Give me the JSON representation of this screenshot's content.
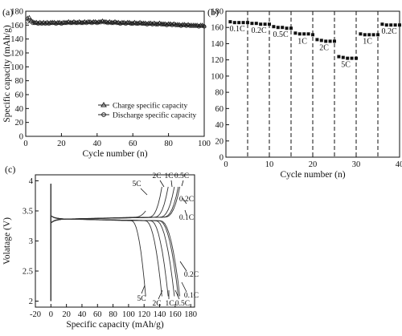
{
  "chart_data": [
    {
      "panel_label": "(a)",
      "type": "scatter",
      "xlabel": "Cycle number (n)",
      "ylabel": "Specific capacity (mAh/g)",
      "xlim": [
        0,
        100
      ],
      "ylim": [
        0,
        180
      ],
      "xticks": [
        0,
        20,
        40,
        60,
        80,
        100
      ],
      "yticks": [
        0,
        20,
        40,
        60,
        80,
        100,
        120,
        140,
        160,
        180
      ],
      "legend_position": "bottom-right",
      "grid": false,
      "series": [
        {
          "name": "Charge specific capacity",
          "marker": "triangle",
          "x": [
            1,
            2,
            3,
            4,
            5,
            6,
            7,
            8,
            9,
            10,
            11,
            12,
            13,
            14,
            15,
            16,
            17,
            18,
            19,
            20,
            21,
            22,
            23,
            24,
            25,
            26,
            27,
            28,
            29,
            30,
            31,
            32,
            33,
            34,
            35,
            36,
            37,
            38,
            39,
            40,
            41,
            42,
            43,
            44,
            45,
            46,
            47,
            48,
            49,
            50,
            51,
            52,
            53,
            54,
            55,
            56,
            57,
            58,
            59,
            60,
            61,
            62,
            63,
            64,
            65,
            66,
            67,
            68,
            69,
            70,
            71,
            72,
            73,
            74,
            75,
            76,
            77,
            78,
            79,
            80,
            81,
            82,
            83,
            84,
            85,
            86,
            87,
            88,
            89,
            90,
            91,
            92,
            93,
            94,
            95,
            96,
            97,
            98,
            99,
            100
          ],
          "y": [
            170,
            171,
            167,
            165,
            164,
            164,
            163,
            164,
            163,
            164,
            163,
            164,
            163,
            164,
            164,
            164,
            163,
            164,
            164,
            163,
            164,
            164,
            164,
            165,
            164,
            164,
            165,
            164,
            164,
            165,
            164,
            164,
            165,
            164,
            165,
            165,
            164,
            165,
            165,
            164,
            165,
            165,
            166,
            165,
            165,
            164,
            165,
            164,
            164,
            165,
            164,
            164,
            163,
            164,
            164,
            163,
            164,
            164,
            163,
            163,
            164,
            163,
            163,
            164,
            163,
            163,
            163,
            162,
            163,
            163,
            162,
            163,
            162,
            162,
            163,
            162,
            162,
            162,
            161,
            162,
            162,
            161,
            162,
            161,
            161,
            161,
            160,
            161,
            161,
            160,
            161,
            160,
            160,
            160,
            160,
            160,
            159,
            160,
            160,
            159
          ]
        },
        {
          "name": "Discharge specific capacity",
          "marker": "circle",
          "x": [
            1,
            2,
            3,
            4,
            5,
            6,
            7,
            8,
            9,
            10,
            11,
            12,
            13,
            14,
            15,
            16,
            17,
            18,
            19,
            20,
            21,
            22,
            23,
            24,
            25,
            26,
            27,
            28,
            29,
            30,
            31,
            32,
            33,
            34,
            35,
            36,
            37,
            38,
            39,
            40,
            41,
            42,
            43,
            44,
            45,
            46,
            47,
            48,
            49,
            50,
            51,
            52,
            53,
            54,
            55,
            56,
            57,
            58,
            59,
            60,
            61,
            62,
            63,
            64,
            65,
            66,
            67,
            68,
            69,
            70,
            71,
            72,
            73,
            74,
            75,
            76,
            77,
            78,
            79,
            80,
            81,
            82,
            83,
            84,
            85,
            86,
            87,
            88,
            89,
            90,
            91,
            92,
            93,
            94,
            95,
            96,
            97,
            98,
            99,
            100
          ],
          "y": [
            165,
            167,
            165,
            163,
            163,
            163,
            162,
            163,
            162,
            163,
            162,
            163,
            162,
            163,
            163,
            163,
            162,
            163,
            163,
            162,
            163,
            163,
            163,
            164,
            163,
            163,
            164,
            163,
            163,
            164,
            163,
            163,
            164,
            163,
            164,
            164,
            163,
            164,
            164,
            163,
            164,
            164,
            165,
            164,
            164,
            163,
            164,
            163,
            163,
            164,
            163,
            163,
            162,
            163,
            163,
            162,
            163,
            163,
            162,
            162,
            163,
            162,
            162,
            163,
            162,
            162,
            162,
            161,
            162,
            162,
            161,
            162,
            161,
            161,
            162,
            161,
            161,
            161,
            160,
            161,
            161,
            160,
            161,
            160,
            160,
            160,
            159,
            160,
            160,
            159,
            160,
            159,
            159,
            159,
            159,
            159,
            158,
            159,
            159,
            158
          ]
        }
      ]
    },
    {
      "panel_label": "(b)",
      "type": "scatter",
      "xlabel": "Cycle number (n)",
      "ylabel": "",
      "xlim": [
        0,
        40
      ],
      "ylim": [
        0,
        180
      ],
      "xticks": [
        0,
        10,
        20,
        30,
        40
      ],
      "yticks": [
        0,
        20,
        40,
        60,
        80,
        100,
        120,
        140,
        160,
        180
      ],
      "dividers_at": [
        5,
        10,
        15,
        20,
        25,
        30,
        35
      ],
      "grid": false,
      "rate_steps": [
        {
          "label": "0.1C",
          "values": [
            167,
            166,
            166,
            166,
            166
          ]
        },
        {
          "label": "0.2C",
          "values": [
            165,
            165,
            164,
            164,
            164
          ]
        },
        {
          "label": "0.5C",
          "values": [
            161,
            160,
            160,
            159,
            159
          ]
        },
        {
          "label": "1C",
          "values": [
            153,
            152,
            152,
            152,
            151
          ]
        },
        {
          "label": "2C",
          "values": [
            145,
            144,
            143,
            143,
            143
          ]
        },
        {
          "label": "5C",
          "values": [
            124,
            123,
            122,
            122,
            122
          ]
        },
        {
          "label": "1C",
          "values": [
            152,
            151,
            151,
            151,
            151
          ]
        },
        {
          "label": "0.2C",
          "values": [
            164,
            163,
            163,
            163,
            163
          ]
        }
      ]
    },
    {
      "panel_label": "(c)",
      "type": "line",
      "xlabel": "Specific capacity (mAh/g)",
      "ylabel": "Volatage (V)",
      "xlim": [
        -20,
        185
      ],
      "ylim": [
        1.9,
        4.1
      ],
      "xticks": [
        -20,
        0,
        20,
        40,
        60,
        80,
        100,
        120,
        140,
        160,
        180
      ],
      "yticks": [
        2.0,
        2.5,
        3.0,
        3.5,
        4.0
      ],
      "grid": false,
      "series": [
        {
          "name": "5C",
          "capacity": 122
        },
        {
          "name": "2C",
          "capacity": 143
        },
        {
          "name": "1C",
          "capacity": 151
        },
        {
          "name": "0.5C",
          "capacity": 159
        },
        {
          "name": "0.2C",
          "capacity": 164
        },
        {
          "name": "0.1C",
          "capacity": 166
        }
      ],
      "annotations": {
        "charge_labels": [
          "5C",
          "2C",
          "1C",
          "0.5C",
          "0.2C",
          "0.1C"
        ],
        "discharge_labels": [
          "0.2C",
          "0.1C",
          "5C",
          "2C",
          "1C",
          "0.5C"
        ]
      }
    }
  ]
}
